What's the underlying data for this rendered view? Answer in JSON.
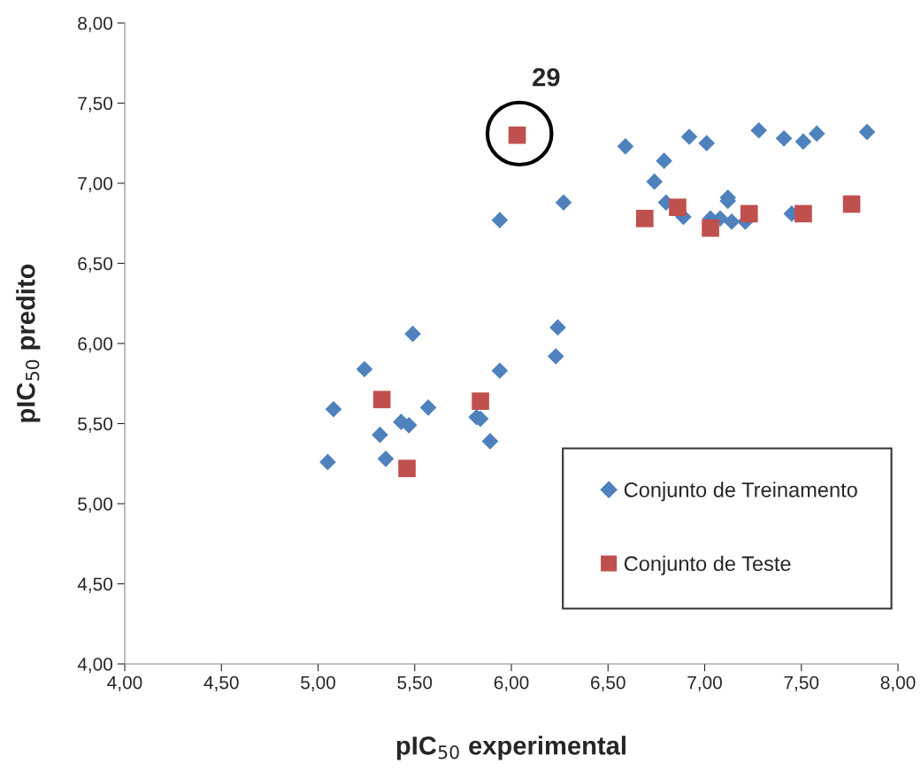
{
  "chart_data": {
    "type": "scatter",
    "xlabel": "pIC$_{50}$ experimental",
    "ylabel": "pIC$_{50}$ predito",
    "xlim": [
      4,
      8
    ],
    "ylim": [
      4,
      8
    ],
    "xticks": [
      {
        "value": 4,
        "label": "4,00"
      },
      {
        "value": 4.5,
        "label": "4,50"
      },
      {
        "value": 5,
        "label": "5,00"
      },
      {
        "value": 5.5,
        "label": "5,50"
      },
      {
        "value": 6,
        "label": "6,00"
      },
      {
        "value": 6.5,
        "label": "6,50"
      },
      {
        "value": 7,
        "label": "7,00"
      },
      {
        "value": 7.5,
        "label": "7,50"
      },
      {
        "value": 8,
        "label": "8,00"
      }
    ],
    "yticks": [
      {
        "value": 4,
        "label": "4,00"
      },
      {
        "value": 4.5,
        "label": "4,50"
      },
      {
        "value": 5,
        "label": "5,00"
      },
      {
        "value": 5.5,
        "label": "5,50"
      },
      {
        "value": 6,
        "label": "6,00"
      },
      {
        "value": 6.5,
        "label": "6,50"
      },
      {
        "value": 7,
        "label": "7,00"
      },
      {
        "value": 7.5,
        "label": "7,50"
      },
      {
        "value": 8,
        "label": "8,00"
      }
    ],
    "grid": false,
    "legend": "bottom right",
    "annotations": [
      "29"
    ],
    "series": [
      {
        "name": "Conjunto de Treinamento",
        "color": "#4f81bd",
        "marker": "diamond",
        "x": [
          5.05,
          5.08,
          5.24,
          5.32,
          5.35,
          5.43,
          5.47,
          5.49,
          5.57,
          5.82,
          5.84,
          5.89,
          5.94,
          5.94,
          6.23,
          6.24,
          6.27,
          6.59,
          6.92,
          7.01,
          6.79,
          6.74,
          7.28,
          7.41,
          7.51,
          7.58,
          7.84,
          6.8,
          6.89,
          7.12,
          7.12,
          7.03,
          7.08,
          7.14,
          7.21,
          7.45
        ],
        "values": [
          5.26,
          5.59,
          5.84,
          5.43,
          5.28,
          5.51,
          5.49,
          6.06,
          5.6,
          5.54,
          5.53,
          5.39,
          5.83,
          6.77,
          5.92,
          6.1,
          6.88,
          7.23,
          7.29,
          7.25,
          7.14,
          7.01,
          7.33,
          7.28,
          7.26,
          7.31,
          7.32,
          6.88,
          6.79,
          6.91,
          6.89,
          6.78,
          6.78,
          6.76,
          6.76,
          6.81
        ]
      },
      {
        "name": "Conjunto de Teste",
        "color": "#c0504d",
        "marker": "square",
        "x": [
          6.03,
          5.33,
          5.46,
          5.84,
          6.69,
          6.86,
          7.03,
          7.23,
          7.51,
          7.76
        ],
        "values": [
          7.3,
          5.65,
          5.22,
          5.64,
          6.78,
          6.85,
          6.72,
          6.81,
          6.81,
          6.87
        ]
      }
    ]
  }
}
